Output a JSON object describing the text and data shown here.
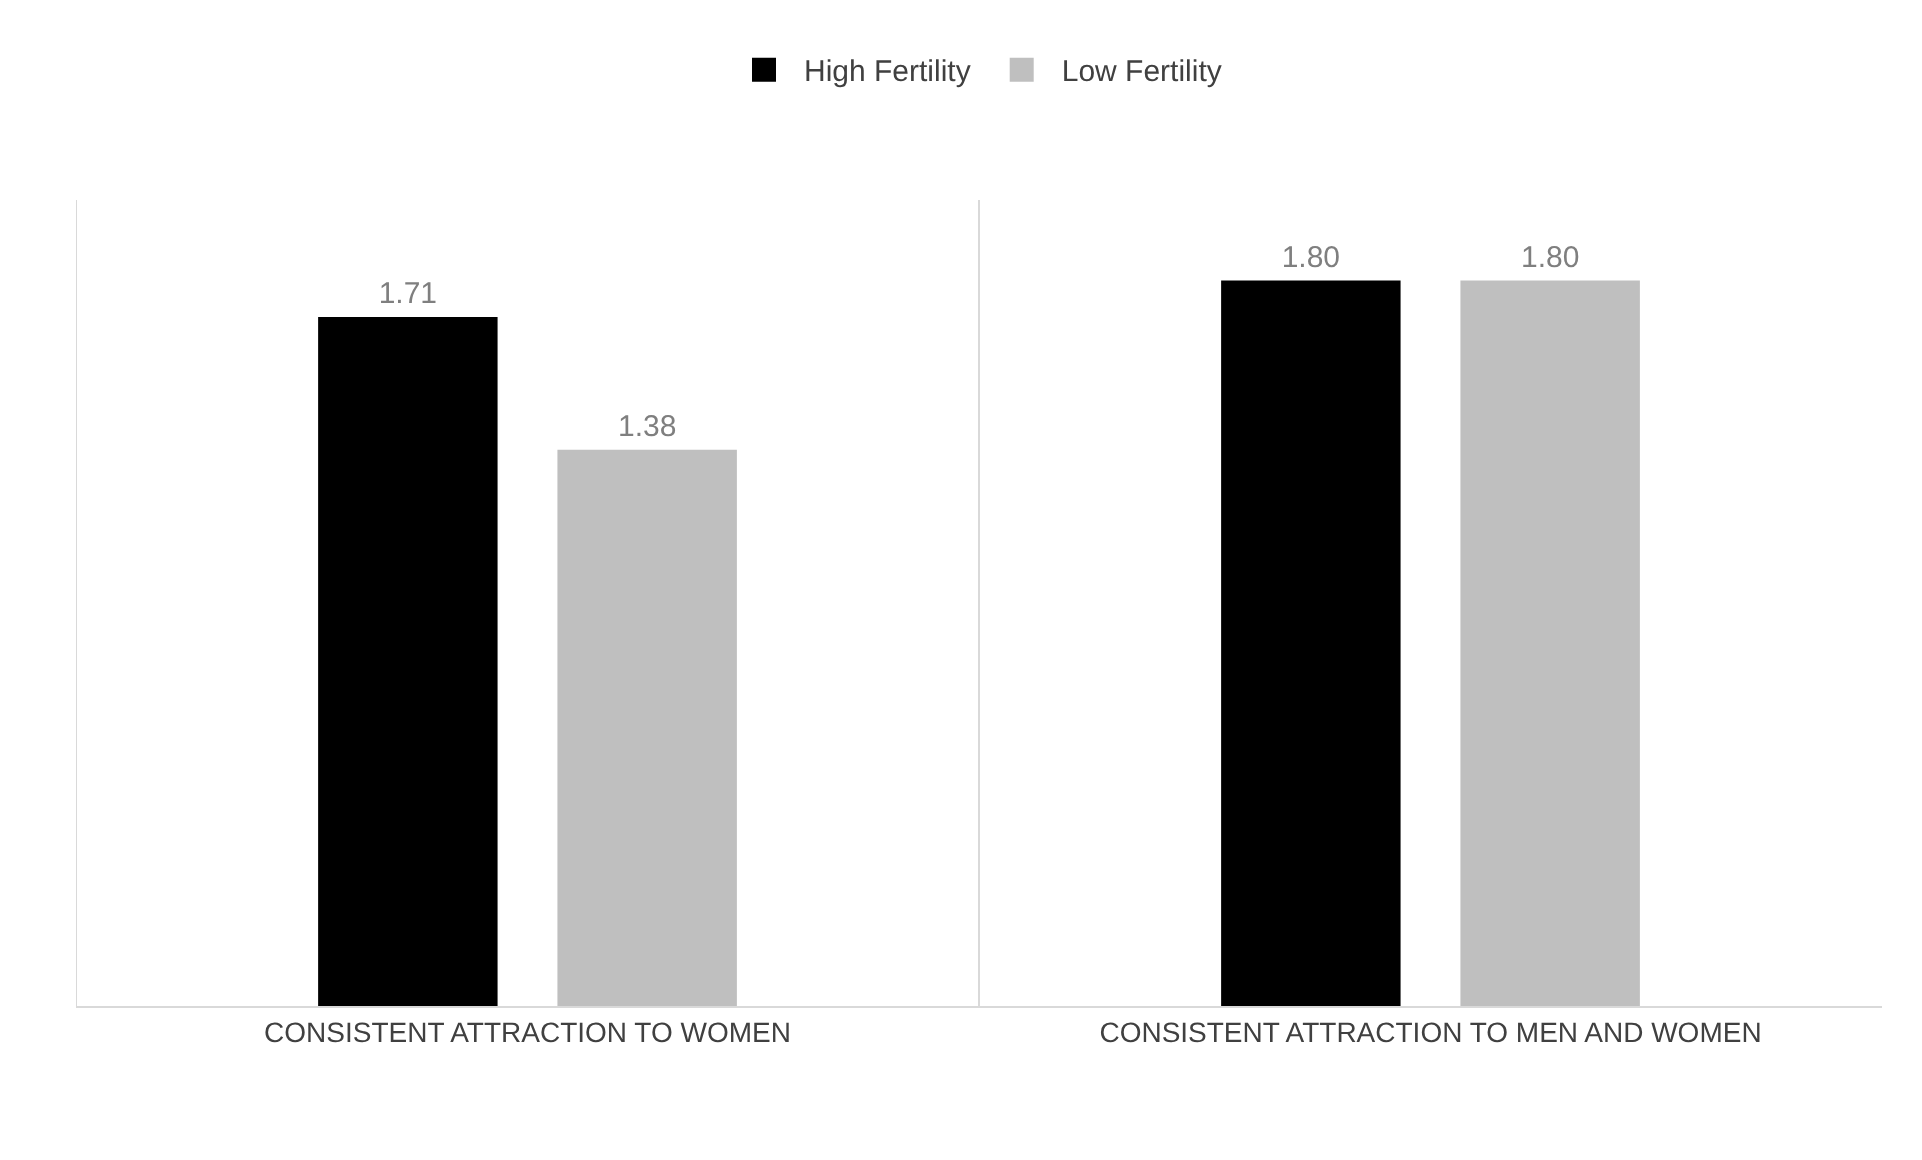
{
  "chart_data": {
    "type": "bar",
    "categories": [
      "CONSISTENT ATTRACTION TO WOMEN",
      "CONSISTENT ATTRACTION TO MEN AND WOMEN"
    ],
    "series": [
      {
        "name": "High Fertility",
        "color": "#000000",
        "values": [
          1.71,
          1.8
        ],
        "value_labels": [
          "1.71",
          "1.80"
        ]
      },
      {
        "name": "Low Fertility",
        "color": "#bfbfbf",
        "values": [
          1.38,
          1.8
        ],
        "value_labels": [
          "1.38",
          "1.80"
        ]
      }
    ],
    "ylim": [
      0,
      2
    ],
    "tick_labels": "x",
    "grid": "x",
    "legend": "top"
  }
}
